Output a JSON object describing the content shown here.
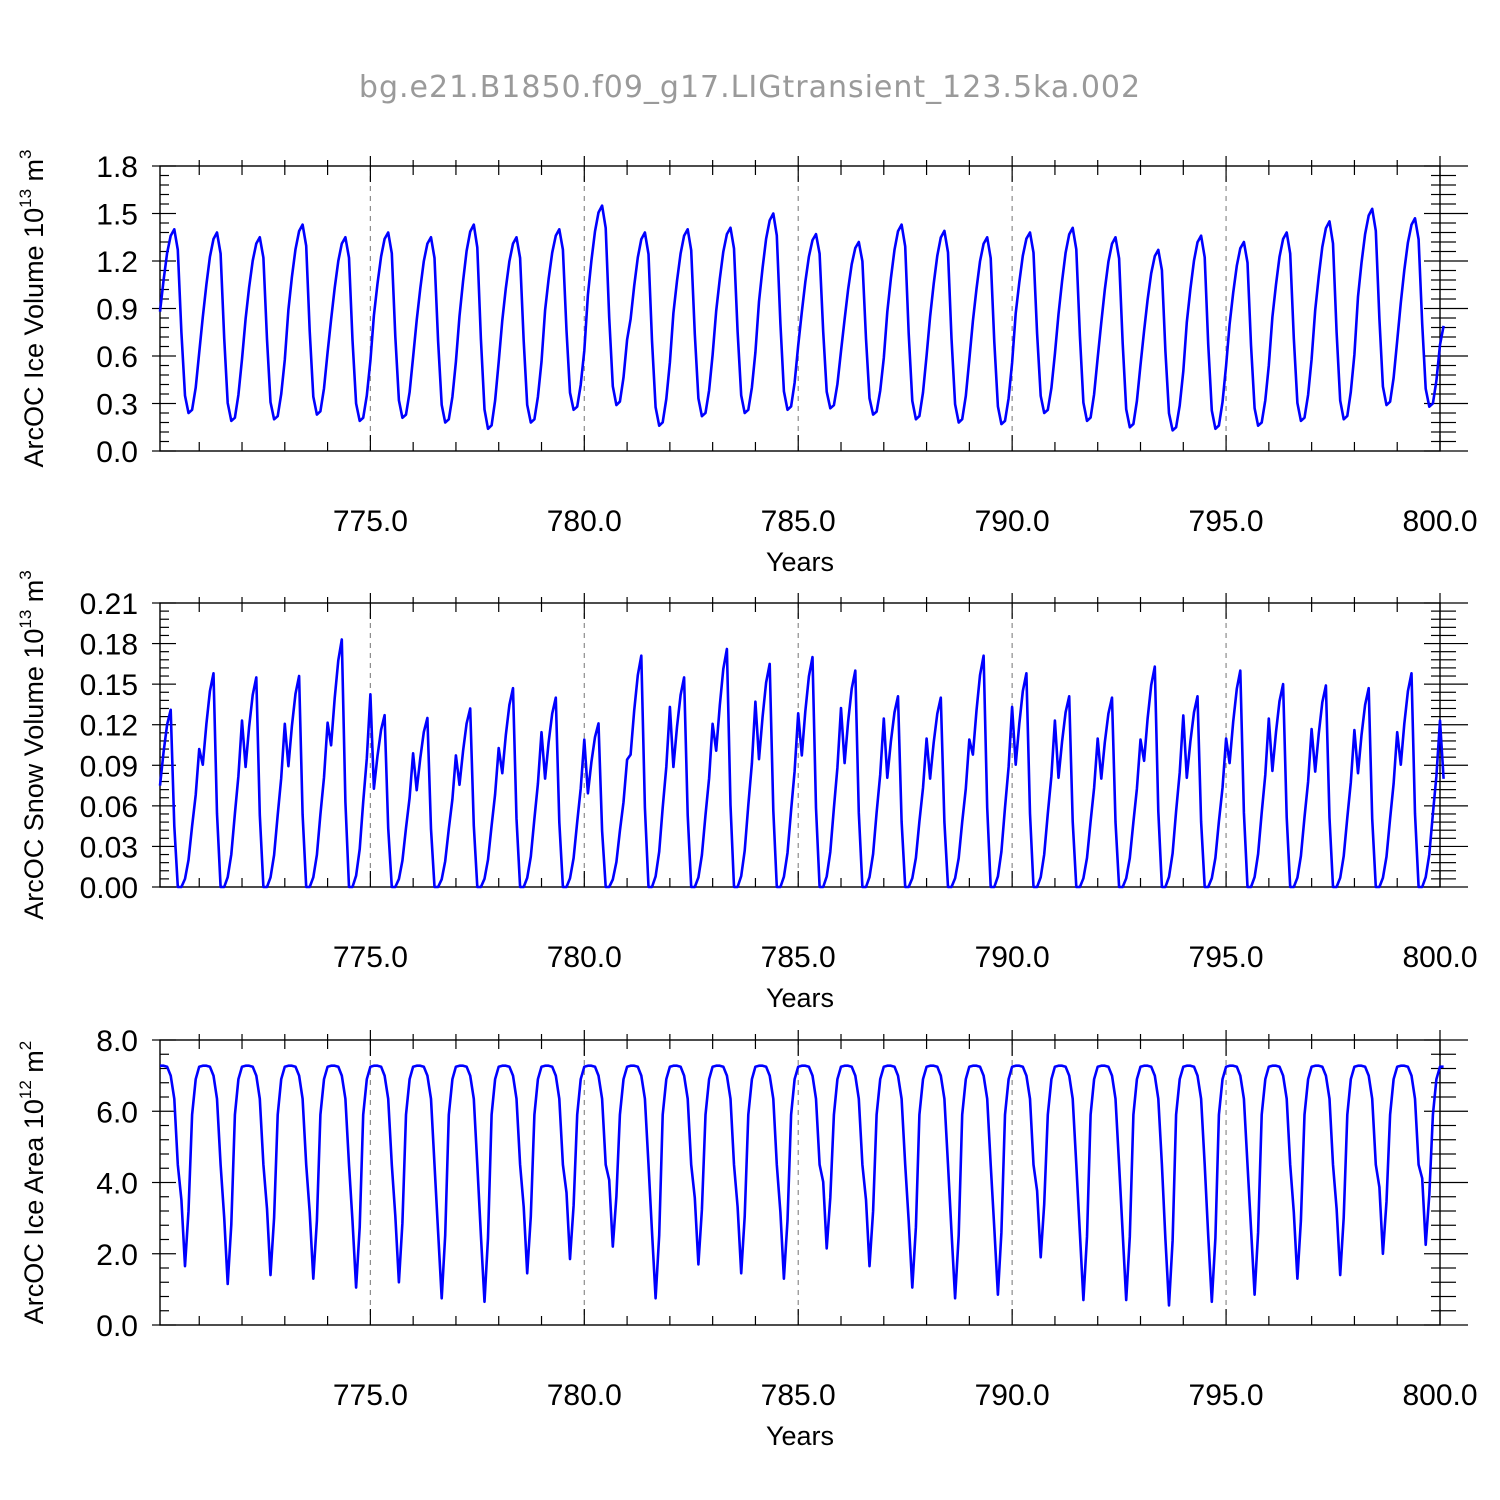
{
  "title": "bg.e21.B1850.f09_g17.LIGtransient_123.5ka.002",
  "colors": {
    "series": "#0000ff",
    "axis": "#000000",
    "grid": "#8c8c8c",
    "title": "#9a9a9a"
  },
  "chart_data": [
    {
      "type": "line",
      "title": "",
      "xlabel": "Years",
      "ylabel": "ArcOC Ice Volume 10^13 m^3",
      "ylabel_parts": {
        "base": "ArcOC Ice Volume 10",
        "exp": "13",
        "unit": "m",
        "unit_exp": "3"
      },
      "xlim": [
        770.083,
        800.0
      ],
      "ylim": [
        0.0,
        1.8
      ],
      "xticks": [
        775.0,
        780.0,
        785.0,
        790.0,
        795.0,
        800.0
      ],
      "xtick_labels": [
        "775.0",
        "780.0",
        "785.0",
        "790.0",
        "795.0",
        "800.0"
      ],
      "yticks": [
        0.0,
        0.3,
        0.6,
        0.9,
        1.2,
        1.5,
        1.8
      ],
      "ytick_labels": [
        "0.0",
        "0.3",
        "0.6",
        "0.9",
        "1.2",
        "1.5",
        "1.8"
      ],
      "grid": "vertical dashed at major x ticks",
      "series": [
        {
          "start_x": 770.083,
          "step": 0.0833333,
          "shape": [
            0.88,
            1.08,
            1.25,
            1.36,
            1.4,
            1.27,
            0.75,
            0.35,
            0.24,
            0.26,
            0.4,
            0.62
          ],
          "peaks": [
            1.4,
            1.38,
            1.35,
            1.43,
            1.35,
            1.38,
            1.35,
            1.43,
            1.35,
            1.4,
            1.55,
            1.38,
            1.4,
            1.41,
            1.5,
            1.37,
            1.32,
            1.43,
            1.39,
            1.35,
            1.38,
            1.41,
            1.35,
            1.27,
            1.36,
            1.32,
            1.38,
            1.45,
            1.53,
            1.47
          ],
          "troughs": [
            0.24,
            0.19,
            0.2,
            0.23,
            0.19,
            0.21,
            0.18,
            0.14,
            0.18,
            0.26,
            0.29,
            0.16,
            0.22,
            0.24,
            0.26,
            0.27,
            0.23,
            0.2,
            0.18,
            0.17,
            0.24,
            0.19,
            0.15,
            0.13,
            0.14,
            0.16,
            0.19,
            0.2,
            0.29,
            0.28
          ],
          "end_value": 0.79
        }
      ]
    },
    {
      "type": "line",
      "title": "",
      "xlabel": "Years",
      "ylabel": "ArcOC Snow Volume 10^13 m^3",
      "ylabel_parts": {
        "base": "ArcOC Snow Volume 10",
        "exp": "13",
        "unit": "m",
        "unit_exp": "3"
      },
      "xlim": [
        770.083,
        800.0
      ],
      "ylim": [
        0.0,
        0.21
      ],
      "xticks": [
        775.0,
        780.0,
        785.0,
        790.0,
        795.0,
        800.0
      ],
      "xtick_labels": [
        "775.0",
        "780.0",
        "785.0",
        "790.0",
        "795.0",
        "800.0"
      ],
      "yticks": [
        0.0,
        0.03,
        0.06,
        0.09,
        0.12,
        0.15,
        0.18,
        0.21
      ],
      "ytick_labels": [
        "0.00",
        "0.03",
        "0.06",
        "0.09",
        "0.12",
        "0.15",
        "0.18",
        "0.21"
      ],
      "grid": "vertical dashed at major x ticks",
      "series": [
        {
          "start_x": 770.083,
          "step": 0.0833333,
          "shape": [
            0.075,
            0.1,
            0.12,
            0.131,
            0.045,
            0.0,
            0.0,
            0.006,
            0.02,
            0.045,
            0.068,
            0.102
          ],
          "peaks": [
            0.131,
            0.158,
            0.155,
            0.156,
            0.183,
            0.127,
            0.125,
            0.132,
            0.147,
            0.14,
            0.121,
            0.171,
            0.155,
            0.176,
            0.165,
            0.17,
            0.16,
            0.141,
            0.14,
            0.171,
            0.158,
            0.141,
            0.14,
            0.163,
            0.141,
            0.16,
            0.15,
            0.149,
            0.147,
            0.158
          ],
          "end_value": 0.08
        }
      ]
    },
    {
      "type": "line",
      "title": "",
      "xlabel": "Years",
      "ylabel": "ArcOC Ice Area 10^12 m^2",
      "ylabel_parts": {
        "base": "ArcOC Ice Area 10",
        "exp": "12",
        "unit": "m",
        "unit_exp": "2"
      },
      "xlim": [
        770.083,
        800.0
      ],
      "ylim": [
        0.0,
        8.0
      ],
      "xticks": [
        775.0,
        780.0,
        785.0,
        790.0,
        795.0,
        800.0
      ],
      "xtick_labels": [
        "775.0",
        "780.0",
        "785.0",
        "790.0",
        "795.0",
        "800.0"
      ],
      "yticks": [
        0.0,
        2.0,
        4.0,
        6.0,
        8.0
      ],
      "ytick_labels": [
        "0.0",
        "2.0",
        "4.0",
        "6.0",
        "8.0"
      ],
      "grid": "vertical dashed at major x ticks",
      "series": [
        {
          "start_x": 770.083,
          "step": 0.0833333,
          "shape": [
            7.28,
            7.28,
            7.25,
            7.0,
            6.35,
            4.5,
            2.2,
            1.65,
            3.6,
            5.9,
            6.9,
            7.25
          ],
          "troughs": [
            1.65,
            1.15,
            1.4,
            1.3,
            1.05,
            1.2,
            0.75,
            0.65,
            1.45,
            1.85,
            2.2,
            0.75,
            1.7,
            1.45,
            1.3,
            2.15,
            1.65,
            1.05,
            0.75,
            0.85,
            1.9,
            0.7,
            0.7,
            0.55,
            0.65,
            0.85,
            1.3,
            1.4,
            2.0,
            2.25
          ],
          "end_value": 7.25
        }
      ]
    }
  ]
}
